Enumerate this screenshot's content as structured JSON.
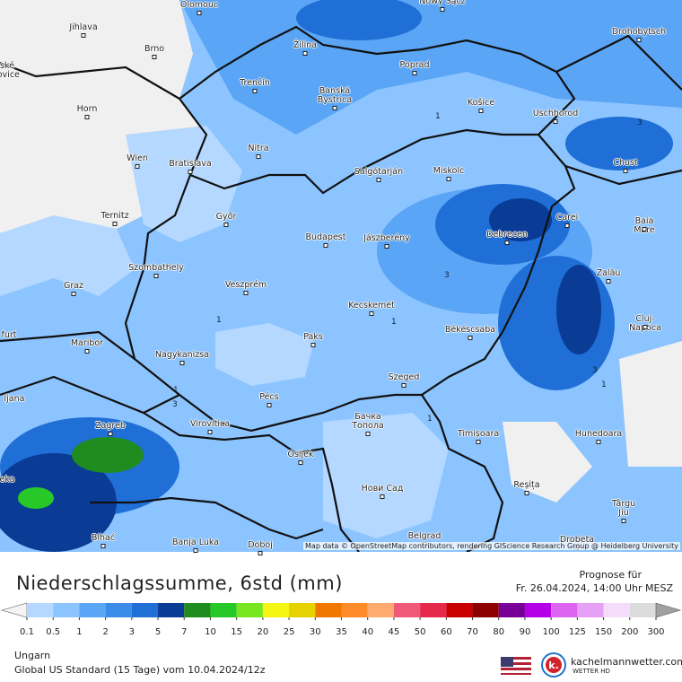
{
  "map": {
    "cities": [
      "Olomouc",
      "Jihlava",
      "Nowy Sącz",
      "Drohobytsch",
      "Brno",
      "Žilina",
      "Poprad",
      "Banská\nBystrica",
      "Trenčín",
      "Košice",
      "Uschhorod",
      "Horn",
      "Nitra",
      "Wien",
      "Bratislava",
      "Salgótarján",
      "Miskolc",
      "Chust",
      "Ternitz",
      "Győr",
      "Carei",
      "Baia Mare",
      "Budapest",
      "Jászberény",
      "Debrecen",
      "Szombathely",
      "Zalău",
      "Graz",
      "Veszprém",
      "Kecskemét",
      "Cluj-Napoca",
      "Maribor",
      "Paks",
      "Békéscsaba",
      "Nagykanizsa",
      "Szeged",
      "Pécs",
      "Zagreb",
      "Бачка\nТопола",
      "Virovitica",
      "Timișoara",
      "Hunedoara",
      "Osijek",
      "Нови Сад",
      "Reșița",
      "Târgu\nJiu",
      "Bihać",
      "Banja Luka",
      "Doboj",
      "Belgrad",
      "Drobeta",
      "ské\njovice",
      "furt",
      "ljana",
      "eka"
    ],
    "contour_labels": [
      "1",
      "1",
      "1",
      "1",
      "1",
      "1",
      "3",
      "3",
      "3",
      "3"
    ],
    "attribution": "Map data © OpenStreetMap contributors, rendering GIScience Research Group @ Heidelberg University"
  },
  "legend": {
    "title": "Niederschlagssumme, 6std (mm)",
    "labels": [
      "0.1",
      "0.5",
      "1",
      "2",
      "3",
      "5",
      "7",
      "10",
      "15",
      "20",
      "25",
      "30",
      "35",
      "40",
      "45",
      "50",
      "60",
      "70",
      "80",
      "90",
      "100",
      "125",
      "150",
      "200",
      "300"
    ],
    "colors": [
      "#f4f4f4",
      "#b4d8ff",
      "#8cc4ff",
      "#5aa5f5",
      "#3b8be8",
      "#1f6fd6",
      "#0a3c96",
      "#1e8c1e",
      "#28c828",
      "#78e61e",
      "#f5f514",
      "#e6d200",
      "#f07800",
      "#ff8c28",
      "#ffaa6e",
      "#f05a78",
      "#e6284b",
      "#c80000",
      "#8c0000",
      "#780096",
      "#b400e6",
      "#dc64f0",
      "#e6a0f5",
      "#f5dcfa",
      "#dcdcdc",
      "#a0a0a0"
    ]
  },
  "footer": {
    "forecast_label": "Prognose für",
    "forecast_time": "Fr. 26.04.2024, 14:00 Uhr MESZ",
    "region": "Ungarn",
    "model": "Global US Standard (15 Tage) vom  10.04.2024/12z",
    "brand": "kachelmannwetter.com",
    "brand_sub": "WETTER HD"
  }
}
